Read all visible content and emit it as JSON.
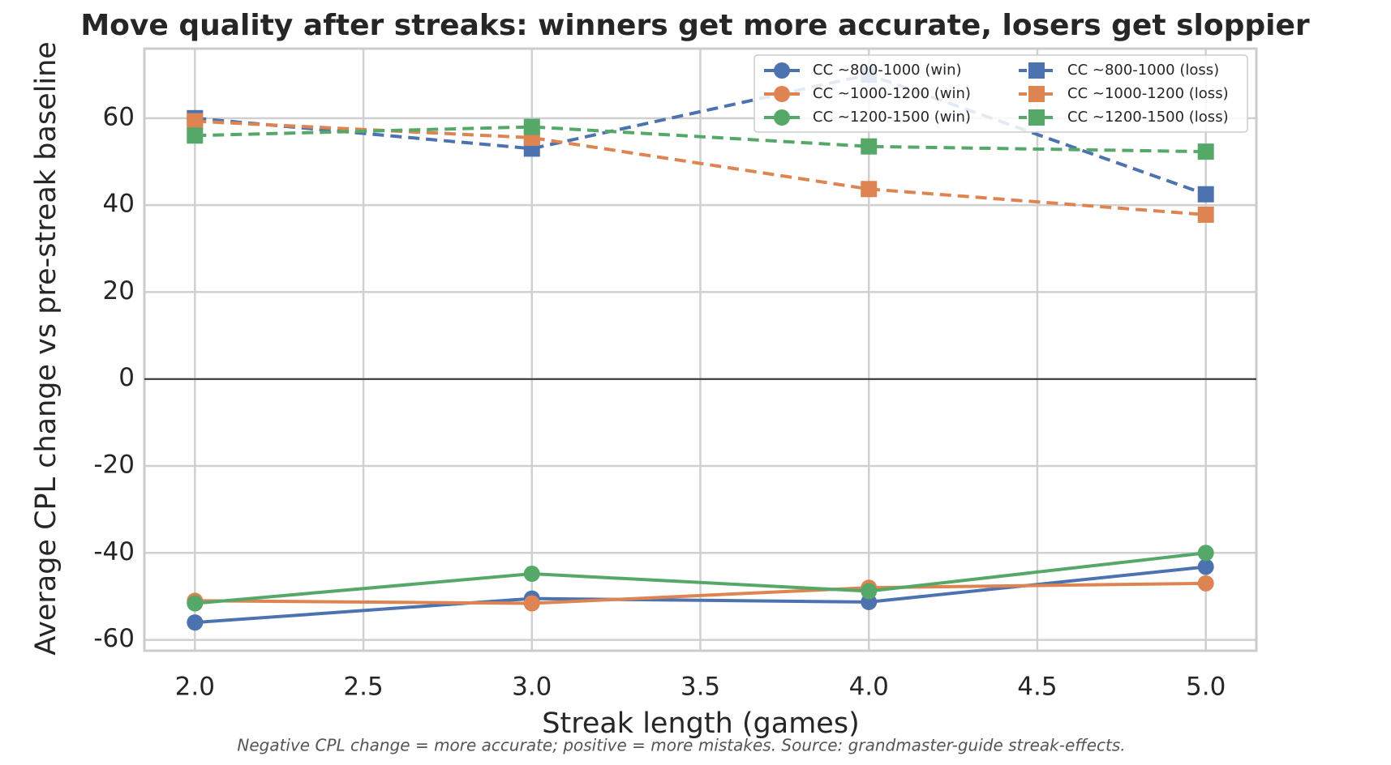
{
  "chart_data": {
    "type": "line",
    "title": "Move quality after streaks: winners get more accurate, losers get sloppier",
    "x_label": "Streak length (games)",
    "y_label": "Average CPL change vs pre-streak baseline",
    "note": "Negative CPL change = more accurate; positive = more mistakes. Source: grandmaster-guide streak-effects.",
    "x": [
      2,
      3,
      4,
      5
    ],
    "xlim": [
      1.85,
      5.15
    ],
    "ylim": [
      -62.5,
      76
    ],
    "xticks": [
      {
        "value": 2,
        "label": "2.0"
      },
      {
        "value": 2.5,
        "label": "2.5"
      },
      {
        "value": 3,
        "label": "3.0"
      },
      {
        "value": 3.5,
        "label": "3.5"
      },
      {
        "value": 4,
        "label": "4.0"
      },
      {
        "value": 4.5,
        "label": "4.5"
      },
      {
        "value": 5,
        "label": "5.0"
      }
    ],
    "yticks": [
      -60,
      -40,
      -20,
      0,
      20,
      40,
      60
    ],
    "grid": true,
    "zero_line": true,
    "legend": "upper right",
    "series": [
      {
        "name": "CC ~800-1000 (win)",
        "color": "#4c72b0",
        "marker": "circle",
        "linestyle": "solid",
        "values": [
          -56,
          -50.5,
          -51.3,
          -43.2
        ]
      },
      {
        "name": "CC ~1000-1200 (win)",
        "color": "#dd8452",
        "marker": "circle",
        "linestyle": "solid",
        "values": [
          -51,
          -51.6,
          -48,
          -47
        ]
      },
      {
        "name": "CC ~1200-1500 (win)",
        "color": "#55a868",
        "marker": "circle",
        "linestyle": "solid",
        "values": [
          -51.6,
          -44.8,
          -48.8,
          -40
        ]
      },
      {
        "name": "CC ~800-1000 (loss)",
        "color": "#4c72b0",
        "marker": "square",
        "linestyle": "dashed",
        "values": [
          60,
          53,
          70,
          42.5
        ]
      },
      {
        "name": "CC ~1000-1200 (loss)",
        "color": "#dd8452",
        "marker": "square",
        "linestyle": "dashed",
        "values": [
          59.3,
          55.5,
          43.7,
          37.8
        ]
      },
      {
        "name": "CC ~1200-1500 (loss)",
        "color": "#55a868",
        "marker": "square",
        "linestyle": "dashed",
        "values": [
          56,
          58,
          53.5,
          52.3
        ]
      }
    ]
  }
}
